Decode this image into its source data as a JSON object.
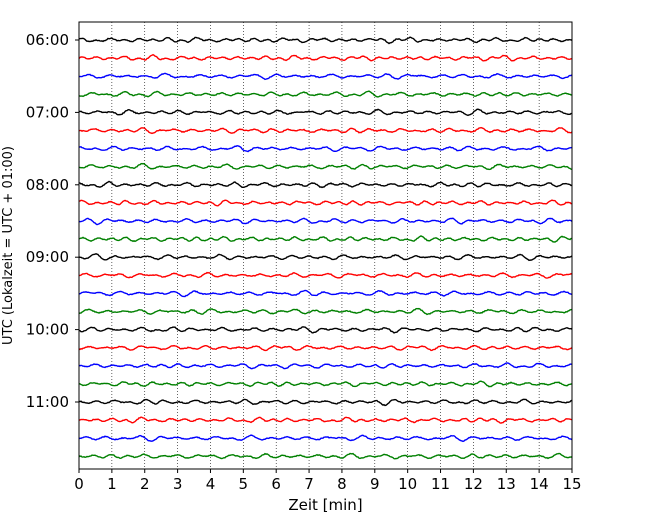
{
  "chart_data": {
    "type": "line",
    "title": "",
    "xlabel": "Zeit  [min]",
    "ylabel": "UTC (Lokalzeit = UTC + 01:00)",
    "xlim": [
      0,
      15
    ],
    "x_ticks": [
      0,
      1,
      2,
      3,
      4,
      5,
      6,
      7,
      8,
      9,
      10,
      11,
      12,
      13,
      14,
      15
    ],
    "x_tick_labels": [
      "0",
      "1",
      "2",
      "3",
      "4",
      "5",
      "6",
      "7",
      "8",
      "9",
      "10",
      "11",
      "12",
      "13",
      "14",
      "15"
    ],
    "y_tick_labels": [
      "06:00",
      "07:00",
      "08:00",
      "09:00",
      "10:00",
      "11:00"
    ],
    "grid": "vertical dotted lines at each minute",
    "trace_interval_min": 15,
    "traces": [
      {
        "start": "06:00",
        "color": "#000000"
      },
      {
        "start": "06:15",
        "color": "#ff0000"
      },
      {
        "start": "06:30",
        "color": "#0000ff"
      },
      {
        "start": "06:45",
        "color": "#008000"
      },
      {
        "start": "07:00",
        "color": "#000000"
      },
      {
        "start": "07:15",
        "color": "#ff0000"
      },
      {
        "start": "07:30",
        "color": "#0000ff"
      },
      {
        "start": "07:45",
        "color": "#008000"
      },
      {
        "start": "08:00",
        "color": "#000000"
      },
      {
        "start": "08:15",
        "color": "#ff0000"
      },
      {
        "start": "08:30",
        "color": "#0000ff"
      },
      {
        "start": "08:45",
        "color": "#008000"
      },
      {
        "start": "09:00",
        "color": "#000000"
      },
      {
        "start": "09:15",
        "color": "#ff0000"
      },
      {
        "start": "09:30",
        "color": "#0000ff"
      },
      {
        "start": "09:45",
        "color": "#008000"
      },
      {
        "start": "10:00",
        "color": "#000000"
      },
      {
        "start": "10:15",
        "color": "#ff0000"
      },
      {
        "start": "10:30",
        "color": "#0000ff"
      },
      {
        "start": "10:45",
        "color": "#008000"
      },
      {
        "start": "11:00",
        "color": "#000000"
      },
      {
        "start": "11:15",
        "color": "#ff0000"
      },
      {
        "start": "11:30",
        "color": "#0000ff"
      },
      {
        "start": "11:45",
        "color": "#008000"
      }
    ]
  }
}
